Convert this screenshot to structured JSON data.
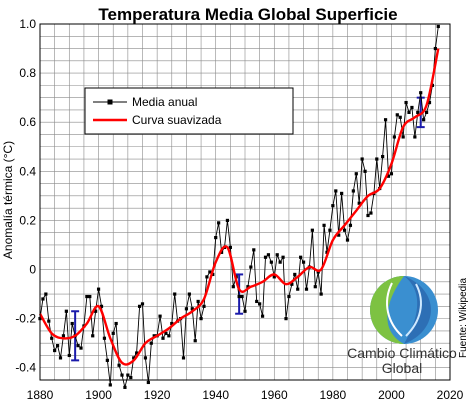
{
  "chart_data": {
    "type": "line",
    "title": "Temperatura Media Global Superficie",
    "ylabel": "Anomalía térmica (°C)",
    "xlabel": "",
    "xlim": [
      1880,
      2020
    ],
    "ylim": [
      -0.45,
      1.0
    ],
    "x_ticks": [
      1880,
      1900,
      1920,
      1940,
      1960,
      1980,
      2000,
      2020
    ],
    "y_ticks": [
      -0.4,
      -0.2,
      0,
      0.2,
      0.4,
      0.6,
      0.8,
      1.0
    ],
    "y_tick_labels": [
      "-0.4",
      "-0.2",
      "0",
      "0.2",
      "0.4",
      "0.6",
      "0.8",
      "1.0"
    ],
    "grid": true,
    "legend_position": "upper-left",
    "series": [
      {
        "name": "Media anual",
        "color": "#000000",
        "marker": "square",
        "x": [
          1880,
          1881,
          1882,
          1883,
          1884,
          1885,
          1886,
          1887,
          1888,
          1889,
          1890,
          1891,
          1892,
          1893,
          1894,
          1895,
          1896,
          1897,
          1898,
          1899,
          1900,
          1901,
          1902,
          1903,
          1904,
          1905,
          1906,
          1907,
          1908,
          1909,
          1910,
          1911,
          1912,
          1913,
          1914,
          1915,
          1916,
          1917,
          1918,
          1919,
          1920,
          1921,
          1922,
          1923,
          1924,
          1925,
          1926,
          1927,
          1928,
          1929,
          1930,
          1931,
          1932,
          1933,
          1934,
          1935,
          1936,
          1937,
          1938,
          1939,
          1940,
          1941,
          1942,
          1943,
          1944,
          1945,
          1946,
          1947,
          1948,
          1949,
          1950,
          1951,
          1952,
          1953,
          1954,
          1955,
          1956,
          1957,
          1958,
          1959,
          1960,
          1961,
          1962,
          1963,
          1964,
          1965,
          1966,
          1967,
          1968,
          1969,
          1970,
          1971,
          1972,
          1973,
          1974,
          1975,
          1976,
          1977,
          1978,
          1979,
          1980,
          1981,
          1982,
          1983,
          1984,
          1985,
          1986,
          1987,
          1988,
          1989,
          1990,
          1991,
          1992,
          1993,
          1994,
          1995,
          1996,
          1997,
          1998,
          1999,
          2000,
          2001,
          2002,
          2003,
          2004,
          2005,
          2006,
          2007,
          2008,
          2009,
          2010,
          2011,
          2012,
          2013,
          2014,
          2015,
          2016
        ],
        "values": [
          -0.2,
          -0.12,
          -0.1,
          -0.21,
          -0.28,
          -0.33,
          -0.31,
          -0.36,
          -0.27,
          -0.17,
          -0.35,
          -0.22,
          -0.27,
          -0.31,
          -0.32,
          -0.23,
          -0.11,
          -0.11,
          -0.27,
          -0.17,
          -0.08,
          -0.15,
          -0.28,
          -0.37,
          -0.47,
          -0.26,
          -0.22,
          -0.39,
          -0.43,
          -0.48,
          -0.43,
          -0.44,
          -0.36,
          -0.34,
          -0.15,
          -0.14,
          -0.36,
          -0.46,
          -0.3,
          -0.27,
          -0.27,
          -0.19,
          -0.28,
          -0.26,
          -0.27,
          -0.22,
          -0.1,
          -0.21,
          -0.2,
          -0.36,
          -0.16,
          -0.1,
          -0.16,
          -0.29,
          -0.13,
          -0.2,
          -0.15,
          -0.03,
          -0.01,
          -0.02,
          0.13,
          0.19,
          0.07,
          0.09,
          0.2,
          0.09,
          -0.07,
          -0.03,
          -0.11,
          -0.11,
          -0.17,
          -0.07,
          0.01,
          0.08,
          -0.13,
          -0.14,
          -0.19,
          0.05,
          0.06,
          0.03,
          -0.03,
          0.06,
          0.03,
          0.05,
          -0.2,
          -0.11,
          -0.06,
          -0.02,
          -0.08,
          0.05,
          0.03,
          -0.08,
          0.01,
          0.16,
          -0.07,
          -0.01,
          -0.1,
          0.18,
          0.07,
          0.16,
          0.26,
          0.32,
          0.14,
          0.31,
          0.16,
          0.12,
          0.18,
          0.32,
          0.39,
          0.27,
          0.45,
          0.4,
          0.22,
          0.23,
          0.31,
          0.45,
          0.33,
          0.46,
          0.61,
          0.38,
          0.39,
          0.54,
          0.63,
          0.62,
          0.54,
          0.68,
          0.64,
          0.66,
          0.54,
          0.64,
          0.72,
          0.61,
          0.64,
          0.68,
          0.75,
          0.9,
          0.99
        ]
      },
      {
        "name": "Curva suavizada",
        "color": "#ff0000",
        "x": [
          1880,
          1884,
          1888,
          1892,
          1896,
          1900,
          1904,
          1908,
          1912,
          1916,
          1920,
          1924,
          1928,
          1932,
          1936,
          1940,
          1944,
          1948,
          1952,
          1956,
          1960,
          1964,
          1968,
          1972,
          1976,
          1980,
          1984,
          1988,
          1992,
          1996,
          2000,
          2004,
          2008,
          2012,
          2016
        ],
        "values": [
          -0.18,
          -0.26,
          -0.28,
          -0.27,
          -0.22,
          -0.15,
          -0.28,
          -0.38,
          -0.37,
          -0.3,
          -0.27,
          -0.24,
          -0.2,
          -0.17,
          -0.12,
          0.03,
          0.09,
          -0.08,
          -0.07,
          -0.05,
          -0.02,
          -0.06,
          -0.03,
          0.01,
          0.0,
          0.12,
          0.18,
          0.24,
          0.3,
          0.33,
          0.43,
          0.58,
          0.62,
          0.67,
          0.9
        ]
      }
    ],
    "uncertainty_bars": [
      {
        "x": 1892,
        "low": -0.37,
        "high": -0.17
      },
      {
        "x": 1948,
        "low": -0.18,
        "high": -0.02
      },
      {
        "x": 2010,
        "low": 0.58,
        "high": 0.7
      }
    ],
    "uncertainty_color": "#1a1aaa"
  },
  "source_label": "Fuente: Wikipedia",
  "logo": {
    "line1": "Cambio Climático",
    "line2": "Global"
  }
}
